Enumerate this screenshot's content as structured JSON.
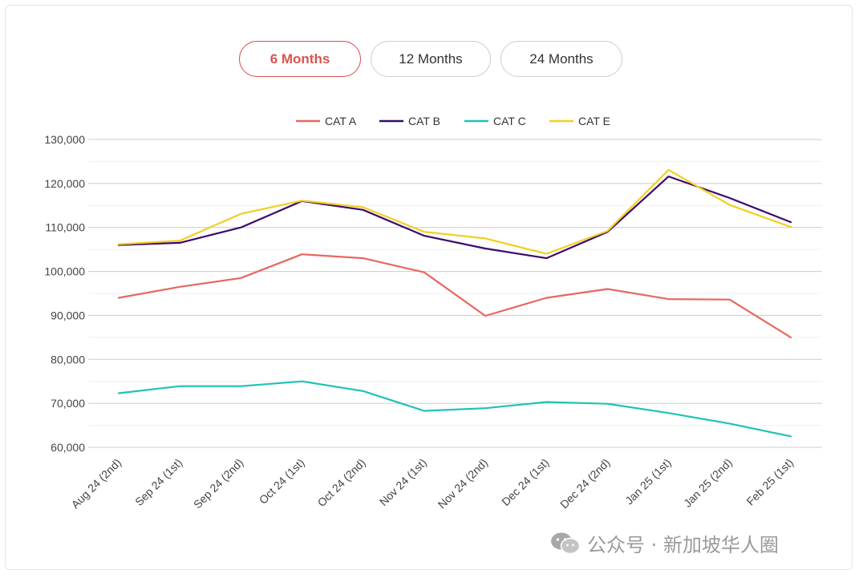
{
  "tabs": [
    {
      "label": "6 Months",
      "active": true
    },
    {
      "label": "12 Months",
      "active": false
    },
    {
      "label": "24 Months",
      "active": false
    }
  ],
  "watermark": "公众号 · 新加坡华人圈",
  "colors": {
    "accent": "#d9534f",
    "CAT A": "#e8675f",
    "CAT B": "#3a0a6e",
    "CAT C": "#1fc2b5",
    "CAT E": "#f2cf1f"
  },
  "chart_data": {
    "type": "line",
    "title": "",
    "xlabel": "",
    "ylabel": "",
    "legend_position": "top-center",
    "grid": true,
    "ylim": [
      60000,
      130000
    ],
    "yticks": [
      "60,000",
      "70,000",
      "80,000",
      "90,000",
      "100,000",
      "110,000",
      "120,000",
      "130,000"
    ],
    "categories": [
      "Aug 24 (2nd)",
      "Sep 24 (1st)",
      "Sep 24 (2nd)",
      "Oct 24 (1st)",
      "Oct 24 (2nd)",
      "Nov 24 (1st)",
      "Nov 24 (2nd)",
      "Dec 24 (1st)",
      "Dec 24 (2nd)",
      "Jan 25 (1st)",
      "Jan 25 (2nd)",
      "Feb 25 (1st)"
    ],
    "series": [
      {
        "name": "CAT A",
        "color": "#e8675f",
        "values": [
          94000,
          96500,
          98500,
          103900,
          103000,
          99800,
          89900,
          94000,
          96000,
          93700,
          93600,
          85000
        ]
      },
      {
        "name": "CAT B",
        "color": "#3a0a6e",
        "values": [
          106000,
          106500,
          110000,
          116000,
          114000,
          108100,
          105200,
          103000,
          109000,
          121600,
          116700,
          111200
        ]
      },
      {
        "name": "CAT C",
        "color": "#1fc2b5",
        "values": [
          72300,
          73900,
          73900,
          75000,
          72800,
          68300,
          68900,
          70300,
          69900,
          67800,
          65400,
          62500
        ]
      },
      {
        "name": "CAT E",
        "color": "#f2cf1f",
        "values": [
          106200,
          107000,
          113100,
          116100,
          114600,
          109000,
          107500,
          104000,
          109200,
          123100,
          115100,
          110100
        ]
      }
    ]
  }
}
